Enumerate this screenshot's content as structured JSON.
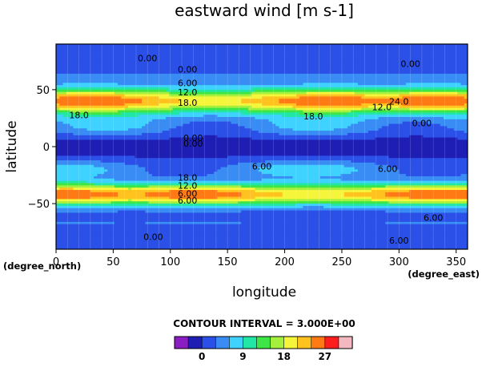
{
  "chart_data": {
    "type": "heatmap",
    "title": "eastward wind [m s-1]",
    "xlabel": "longitude",
    "ylabel": "latitude",
    "x_unit": "(degree_east)",
    "y_unit": "(degree_north)",
    "xlim": [
      0,
      360
    ],
    "ylim": [
      -90,
      90
    ],
    "x_ticks": [
      0,
      50,
      100,
      150,
      200,
      250,
      300,
      350
    ],
    "y_ticks": [
      -50,
      0,
      50
    ],
    "grid": true,
    "contour_interval_label": "CONTOUR INTERVAL = 3.000E+00",
    "colorbar": {
      "levels": [
        -3,
        0,
        3,
        6,
        9,
        12,
        15,
        18,
        21,
        24,
        27,
        30
      ],
      "tick_labels": [
        0,
        9,
        18,
        27
      ],
      "colors": [
        "#8B1DC4",
        "#1E1EB4",
        "#2B50E8",
        "#3A8CF5",
        "#3FD2FF",
        "#22E6A6",
        "#3DE646",
        "#A5F03C",
        "#F5F53C",
        "#FFC21E",
        "#FF7A14",
        "#FF1E1E",
        "#F3B8C0"
      ]
    },
    "jets": [
      {
        "lat": 40,
        "lat_width": 8,
        "peak_ms": 27,
        "peak_lons": [
          30,
          240,
          330
        ]
      },
      {
        "lat": -42,
        "lat_width": 7,
        "peak_ms": 27,
        "peak_lons": [
          10,
          120,
          330
        ]
      }
    ],
    "contour_labels": [
      "0.00",
      "0.00",
      "6.00",
      "12.0",
      "18.0",
      "24.0",
      "18.0",
      "12.0",
      "6.00",
      "6.00",
      "0.00",
      "0.00",
      "0.00",
      "6.00",
      "6.00",
      "18.0",
      "18.0",
      "12.0",
      "6.00",
      "6.00",
      "0.00",
      "0.00"
    ]
  }
}
